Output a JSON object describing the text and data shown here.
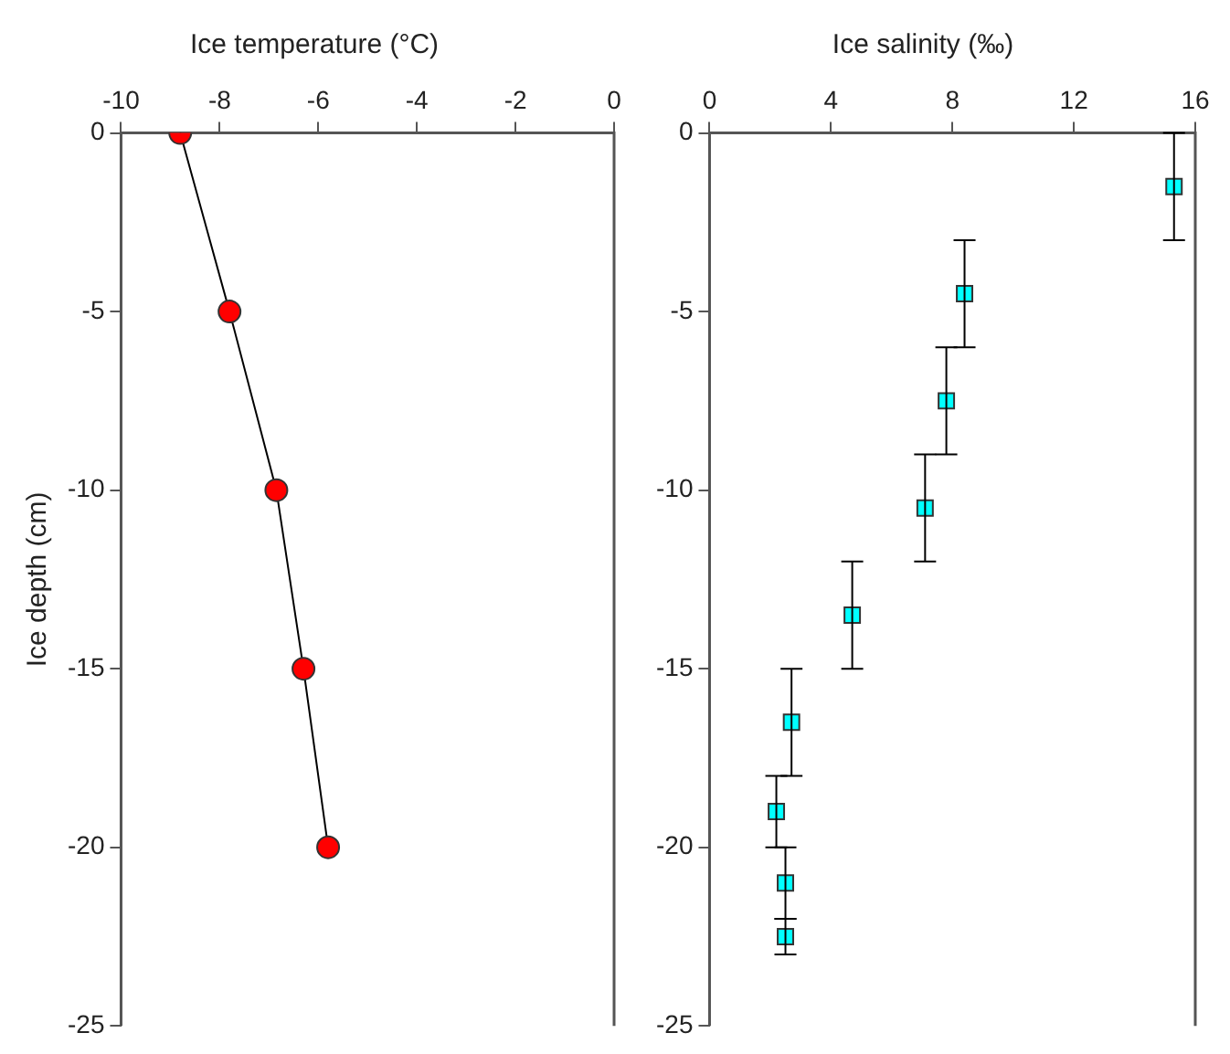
{
  "chart_data": [
    {
      "type": "line",
      "xlabel": "Ice temperature (°C)",
      "ylabel": "Ice depth (cm)",
      "x": [
        -8.8,
        -7.8,
        -6.85,
        -6.3,
        -5.8
      ],
      "values": [
        0,
        -5,
        -10,
        -15,
        -20
      ],
      "color": "#ff0000",
      "marker": "circle",
      "line_style": "solid",
      "xlim": [
        -10,
        0
      ],
      "xticks": [
        -10,
        -8,
        -6,
        -4,
        -2,
        0
      ],
      "ylim": [
        -25,
        0
      ],
      "yticks": [
        -25,
        -20,
        -15,
        -10,
        -5,
        0
      ],
      "grid": false,
      "legend": false
    },
    {
      "type": "scatter",
      "xlabel": "Ice salinity (‰)",
      "x": [
        15.3,
        8.4,
        7.8,
        7.1,
        4.7,
        2.7,
        2.2,
        2.5,
        2.5
      ],
      "values": [
        -1.5,
        -4.5,
        -7.5,
        -10.5,
        -13.5,
        -16.5,
        -19,
        -21,
        -22.5
      ],
      "errors": [
        1.5,
        1.5,
        1.5,
        1.5,
        1.5,
        1.5,
        1,
        1,
        0.5
      ],
      "color": "#00ffff",
      "marker": "square",
      "xlim": [
        0,
        16
      ],
      "xticks": [
        0,
        4,
        8,
        12,
        16
      ],
      "ylim": [
        -25,
        0
      ],
      "yticks": [
        -25,
        -20,
        -15,
        -10,
        -5,
        0
      ],
      "grid": false,
      "legend": false
    }
  ]
}
